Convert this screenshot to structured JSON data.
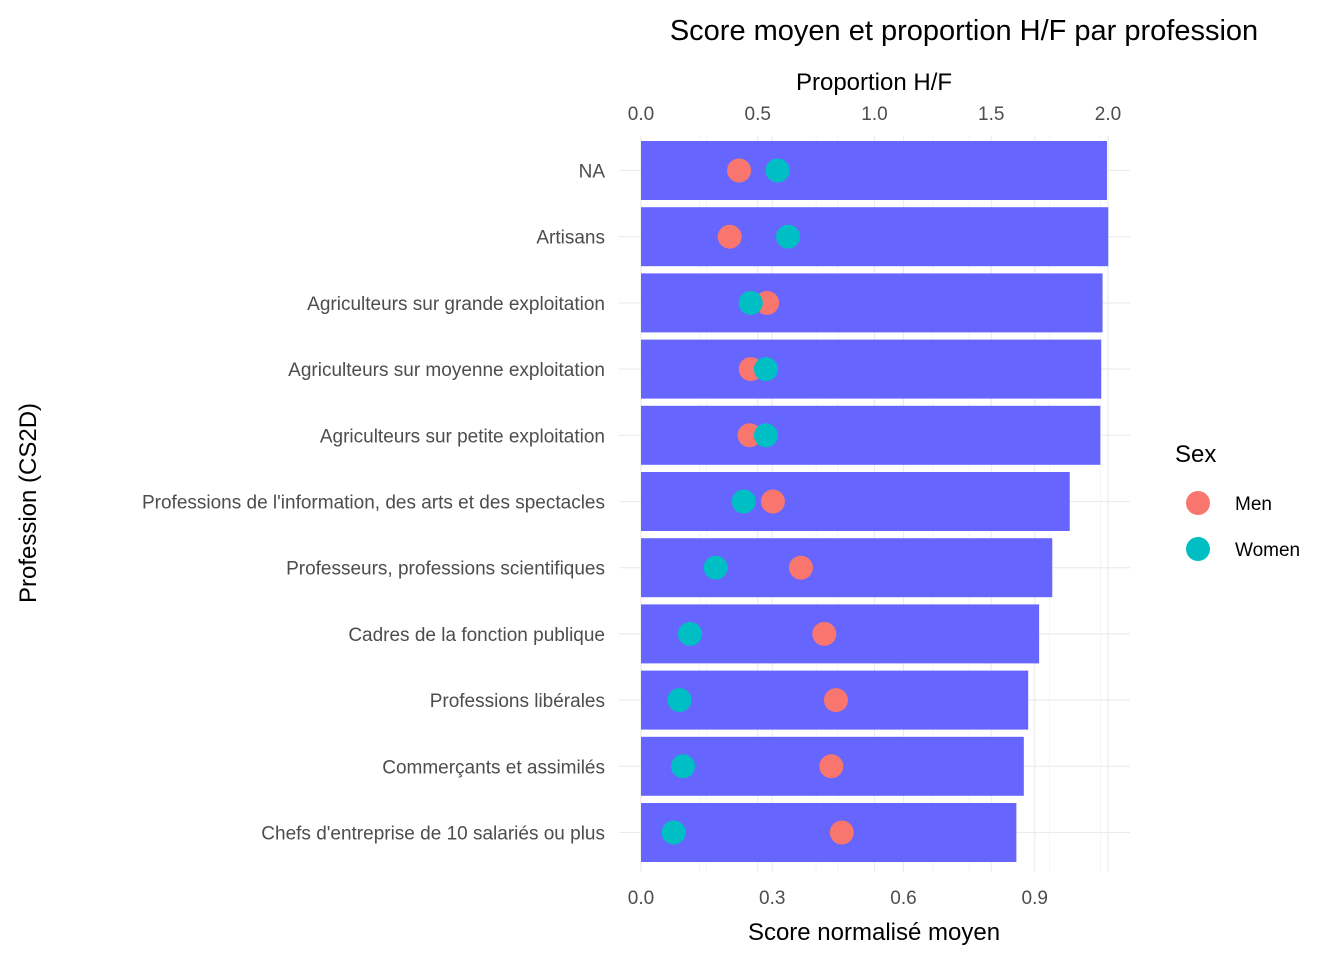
{
  "chart_data": {
    "type": "bar",
    "title": "Score moyen et proportion H/F par profession",
    "ylabel": "Profession (CS2D)",
    "xlabel": "Score normalisé moyen",
    "x2label": "Proportion H/F",
    "xlim": [
      0,
      1.12
    ],
    "x2lim": [
      0,
      2.1
    ],
    "xticks": [
      "0.0",
      "0.3",
      "0.6",
      "0.9"
    ],
    "x2ticks": [
      "0.0",
      "0.5",
      "1.0",
      "1.5",
      "2.0"
    ],
    "grid": true,
    "categories": [
      "NA",
      "Artisans",
      "Agriculteurs sur grande exploitation",
      "Agriculteurs sur moyenne exploitation",
      "Agriculteurs sur petite exploitation",
      "Professions de l'information, des arts et des spectacles",
      "Professeurs, professions scientifiques",
      "Cadres de la fonction publique",
      "Professions libérales",
      "Commerçants et assimilés",
      "Chefs d'entreprise de 10 salariés ou plus"
    ],
    "bar_color": "#6666ff",
    "bar_values": [
      1.065,
      1.068,
      1.055,
      1.052,
      1.05,
      0.98,
      0.94,
      0.91,
      0.885,
      0.875,
      0.858
    ],
    "legend": {
      "title": "Sex",
      "position": "right"
    },
    "series": [
      {
        "name": "Men",
        "color": "#f8766d",
        "values": [
          0.42,
          0.38,
          0.54,
          0.47,
          0.465,
          0.565,
          0.685,
          0.785,
          0.835,
          0.815,
          0.86
        ]
      },
      {
        "name": "Women",
        "color": "#00bfc4",
        "values": [
          0.585,
          0.63,
          0.47,
          0.535,
          0.535,
          0.44,
          0.32,
          0.21,
          0.165,
          0.18,
          0.14
        ]
      }
    ]
  }
}
